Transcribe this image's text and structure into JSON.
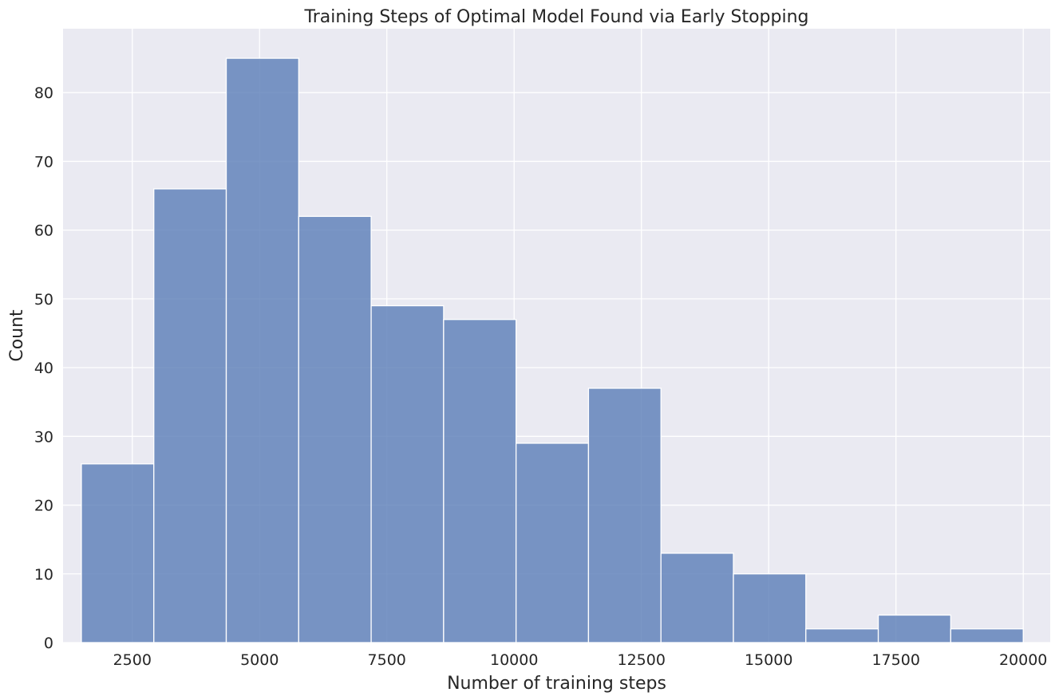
{
  "chart_data": {
    "type": "bar",
    "title": "Training Steps of Optimal Model Found via Early Stopping",
    "xlabel": "Number of training steps",
    "ylabel": "Count",
    "xlim": [
      1140,
      20530
    ],
    "ylim": [
      0,
      89.3
    ],
    "xticks": [
      2500,
      5000,
      7500,
      10000,
      12500,
      15000,
      17500,
      20000
    ],
    "yticks": [
      0,
      10,
      20,
      30,
      40,
      50,
      60,
      70,
      80
    ],
    "bin_edges": [
      1500,
      2923,
      4346,
      5769,
      7192,
      8615,
      10038,
      11461,
      12884,
      14307,
      15730,
      17153,
      18576,
      20000
    ],
    "values": [
      26,
      66,
      85,
      62,
      49,
      47,
      29,
      37,
      13,
      10,
      2,
      4,
      2
    ],
    "grid": true,
    "colors": {
      "bar": "#5a7db6",
      "background": "#eaeaf2",
      "grid": "#ffffff"
    }
  }
}
